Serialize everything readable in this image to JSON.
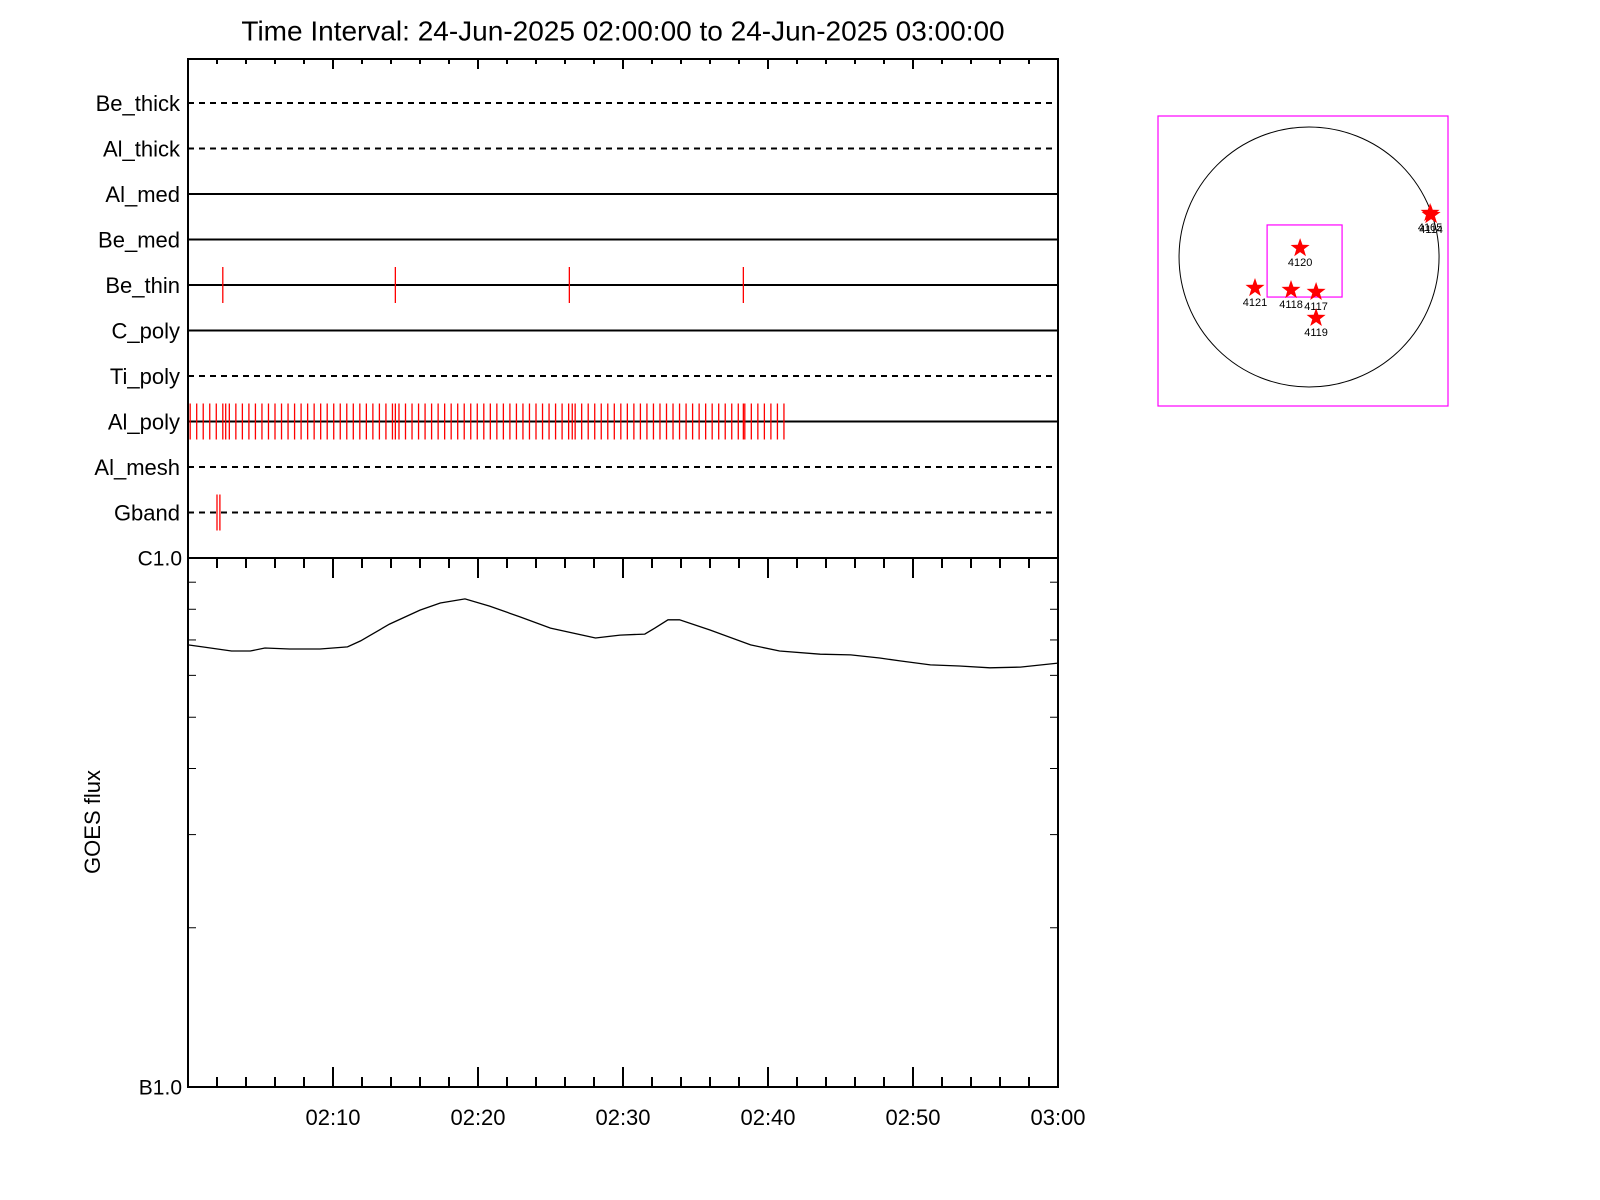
{
  "chart_data": [
    {
      "type": "timeline",
      "title": "Time Interval: 24-Jun-2025 02:00:00 to 24-Jun-2025 03:00:00",
      "xlim": [
        0,
        60
      ],
      "xticks": [
        10,
        20,
        30,
        40,
        50
      ],
      "xminor_ticks": [
        2,
        4,
        6,
        8,
        12,
        14,
        16,
        18,
        22,
        24,
        26,
        28,
        32,
        34,
        36,
        38,
        42,
        44,
        46,
        48,
        52,
        54,
        56,
        58
      ],
      "color": "#ff0000",
      "rows": [
        {
          "name": "Be_thick",
          "style": "dashed",
          "events": []
        },
        {
          "name": "Al_thick",
          "style": "dashed",
          "events": []
        },
        {
          "name": "Al_med",
          "style": "solid",
          "events": []
        },
        {
          "name": "Be_med",
          "style": "solid",
          "events": []
        },
        {
          "name": "Be_thin",
          "style": "solid",
          "events": [
            2.4,
            14.3,
            26.3,
            38.3
          ]
        },
        {
          "name": "C_poly",
          "style": "solid",
          "events": []
        },
        {
          "name": "Ti_poly",
          "style": "dashed",
          "events": []
        },
        {
          "name": "Al_poly",
          "style": "solid",
          "events": [
            0.15,
            0.6,
            1.05,
            1.5,
            1.95,
            2.4,
            2.6,
            2.85,
            3.3,
            3.75,
            4.2,
            4.65,
            5.1,
            5.55,
            6.0,
            6.45,
            6.9,
            7.35,
            7.8,
            8.25,
            8.7,
            9.15,
            9.6,
            10.05,
            10.5,
            10.95,
            11.4,
            11.85,
            12.3,
            12.75,
            13.2,
            13.65,
            14.1,
            14.3,
            14.55,
            15.0,
            15.45,
            15.9,
            16.35,
            16.8,
            17.25,
            17.7,
            18.15,
            18.6,
            19.05,
            19.5,
            19.95,
            20.4,
            20.85,
            21.3,
            21.75,
            22.2,
            22.65,
            23.1,
            23.55,
            24.0,
            24.45,
            24.9,
            25.35,
            25.8,
            26.25,
            26.5,
            26.7,
            27.15,
            27.6,
            28.05,
            28.5,
            28.95,
            29.4,
            29.85,
            30.3,
            30.75,
            31.2,
            31.65,
            32.1,
            32.55,
            33.0,
            33.45,
            33.9,
            34.35,
            34.8,
            35.25,
            35.7,
            36.15,
            36.6,
            37.05,
            37.5,
            37.95,
            38.3,
            38.4,
            38.85,
            39.3,
            39.75,
            40.2,
            40.65,
            41.1
          ]
        },
        {
          "name": "Al_mesh",
          "style": "dashed",
          "events": []
        },
        {
          "name": "Gband",
          "style": "dashed",
          "events": [
            2.0,
            2.2
          ]
        }
      ]
    },
    {
      "type": "line",
      "ylabel": "GOES flux",
      "ylog": true,
      "color": "#000000",
      "xlim": [
        0,
        60
      ],
      "xticks": [
        {
          "value": 10,
          "label": "02:10"
        },
        {
          "value": 20,
          "label": "02:20"
        },
        {
          "value": 30,
          "label": "02:30"
        },
        {
          "value": 40,
          "label": "02:40"
        },
        {
          "value": 50,
          "label": "02:50"
        },
        {
          "value": 60,
          "label": "03:00"
        }
      ],
      "xminor_ticks": [
        2,
        4,
        6,
        8,
        12,
        14,
        16,
        18,
        22,
        24,
        26,
        28,
        32,
        34,
        36,
        38,
        42,
        44,
        46,
        48,
        52,
        54,
        56,
        58
      ],
      "ylim": [
        1e-07,
        1e-06
      ],
      "yticks": [
        {
          "value": 1e-07,
          "label": "B1.0"
        },
        {
          "value": 1e-06,
          "label": "C1.0"
        }
      ],
      "yminor_ticks": [
        2e-07,
        3e-07,
        4e-07,
        5e-07,
        6e-07,
        7e-07,
        8e-07,
        9e-07
      ],
      "x": [
        0,
        1.0,
        3.0,
        4.3,
        5.3,
        7.0,
        9.1,
        11.0,
        11.9,
        13.9,
        16.0,
        17.4,
        19.1,
        20.8,
        22.9,
        25.0,
        28.1,
        29.8,
        31.5,
        32.2,
        33.1,
        33.9,
        36.0,
        38.8,
        40.8,
        43.6,
        45.7,
        47.7,
        49.1,
        51.2,
        53.2,
        55.3,
        57.4,
        60
      ],
      "values": [
        6.85e-07,
        6.79e-07,
        6.67e-07,
        6.67e-07,
        6.76e-07,
        6.73e-07,
        6.73e-07,
        6.79e-07,
        6.97e-07,
        7.5e-07,
        7.97e-07,
        8.22e-07,
        8.37e-07,
        8.11e-07,
        7.74e-07,
        7.37e-07,
        7.06e-07,
        7.15e-07,
        7.18e-07,
        7.37e-07,
        7.64e-07,
        7.64e-07,
        7.31e-07,
        6.85e-07,
        6.67e-07,
        6.58e-07,
        6.56e-07,
        6.47e-07,
        6.39e-07,
        6.28e-07,
        6.25e-07,
        6.2e-07,
        6.22e-07,
        6.33e-07
      ]
    },
    {
      "type": "map",
      "color": "#ff00ff",
      "xlim": [
        -1098,
        1010
      ],
      "ylim": [
        -1083,
        1025
      ],
      "solar_radius": 945,
      "fov": {
        "x": [
          -305,
          240
        ],
        "y": [
          -291,
          233
        ]
      },
      "regions": [
        {
          "name": "4120",
          "x": -65,
          "y": 65
        },
        {
          "name": "4121",
          "x": -393,
          "y": -225
        },
        {
          "name": "4118",
          "x": -131,
          "y": -240
        },
        {
          "name": "4117",
          "x": 51,
          "y": -254
        },
        {
          "name": "4119",
          "x": 51,
          "y": -443
        },
        {
          "name": "4105",
          "x": 880,
          "y": 320
        },
        {
          "name": "4114",
          "x": 887,
          "y": 305
        }
      ]
    }
  ]
}
